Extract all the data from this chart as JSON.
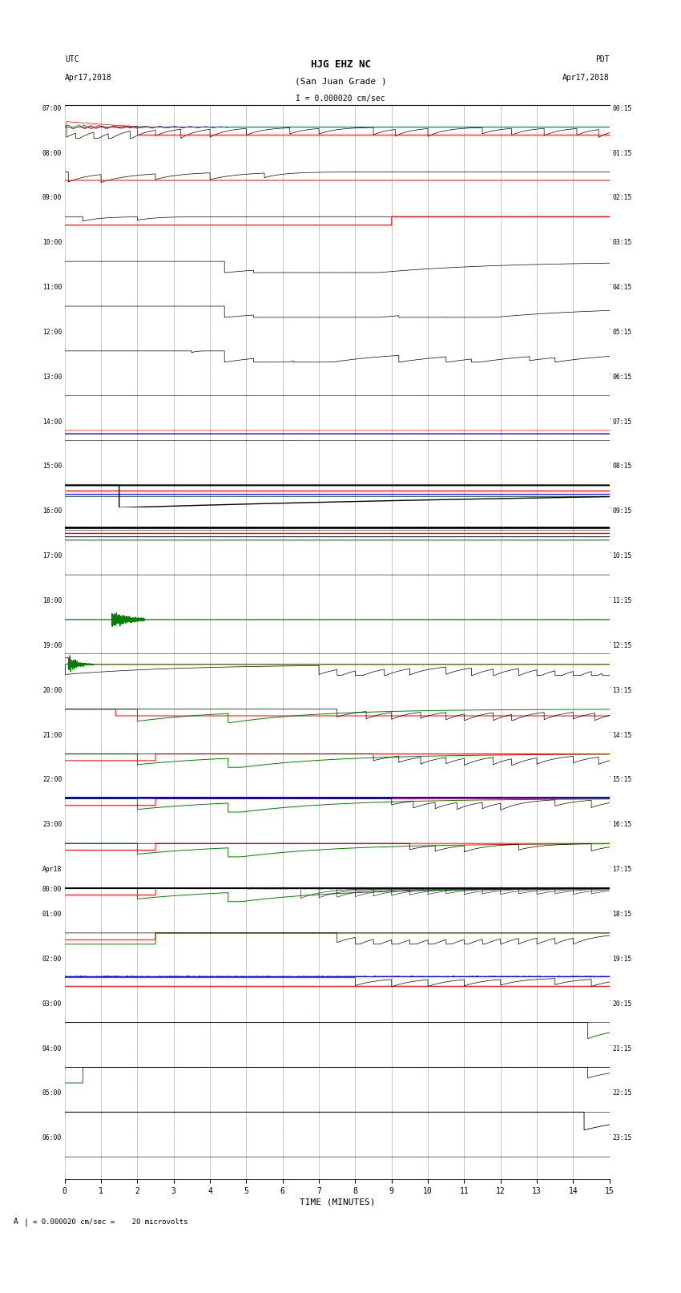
{
  "title_line1": "HJG EHZ NC",
  "title_line2": "(San Juan Grade )",
  "scale_label": "I = 0.000020 cm/sec",
  "left_time_label": "UTC",
  "left_date_label": "Apr17,2018",
  "right_time_label": "PDT",
  "right_date_label": "Apr17,2018",
  "xlabel": "TIME (MINUTES)",
  "footer": "= 0.000020 cm/sec =    20 microvolts",
  "bg_color": "#ffffff",
  "num_rows": 24,
  "xlim": [
    0,
    15
  ],
  "left_utc_labels": [
    "07:00",
    "08:00",
    "09:00",
    "10:00",
    "11:00",
    "12:00",
    "13:00",
    "14:00",
    "15:00",
    "16:00",
    "17:00",
    "18:00",
    "19:00",
    "20:00",
    "21:00",
    "22:00",
    "23:00",
    "Apr18\n00:00",
    "01:00",
    "02:00",
    "03:00",
    "04:00",
    "05:00",
    "06:00"
  ],
  "right_pdt_labels": [
    "00:15",
    "01:15",
    "02:15",
    "03:15",
    "04:15",
    "05:15",
    "06:15",
    "07:15",
    "08:15",
    "09:15",
    "10:15",
    "11:15",
    "12:15",
    "13:15",
    "14:15",
    "15:15",
    "16:15",
    "17:15",
    "18:15",
    "19:15",
    "20:15",
    "21:15",
    "22:15",
    "23:15"
  ]
}
